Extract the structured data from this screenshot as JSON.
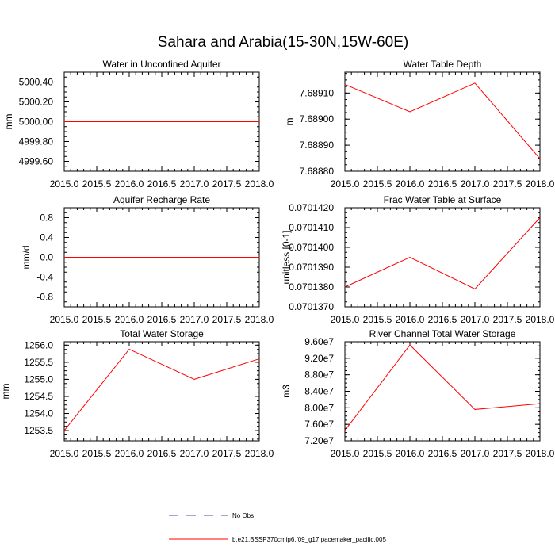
{
  "figure": {
    "title": "Sahara and Arabia(15-30N,15W-60E)"
  },
  "legend": {
    "entries": [
      {
        "label": "No Obs",
        "style": "dashed",
        "color": "#5a4a9a"
      },
      {
        "label": "b.e21.BSSP370cmip6.f09_g17.pacemaker_pacific.005",
        "style": "solid",
        "color": "#ff0000"
      }
    ]
  },
  "series_color": "#ff0000",
  "chart_data": [
    {
      "type": "line",
      "title": "Water in Unconfined Aquifer",
      "ylabel": "mm",
      "xlabel": "",
      "x": [
        2015,
        2016,
        2017,
        2018
      ],
      "series": [
        {
          "values": [
            5000.0,
            5000.0,
            5000.0,
            5000.0
          ]
        }
      ],
      "xlim": [
        2015,
        2018
      ],
      "ylim": [
        4999.5,
        5000.5
      ],
      "xticks": [
        "2015.0",
        "2015.5",
        "2016.0",
        "2016.5",
        "2017.0",
        "2017.5",
        "2018.0"
      ],
      "yticks": [
        "5000.40",
        "5000.20",
        "5000.00",
        "4999.80",
        "4999.60"
      ]
    },
    {
      "type": "line",
      "title": "Water Table Depth",
      "ylabel": "m",
      "xlabel": "",
      "x": [
        2015,
        2016,
        2017,
        2018
      ],
      "series": [
        {
          "values": [
            7.689133,
            7.689028,
            7.689138,
            7.688848
          ]
        }
      ],
      "xlim": [
        2015,
        2018
      ],
      "ylim": [
        7.6888,
        7.68918
      ],
      "xticks": [
        "2015.0",
        "2015.5",
        "2016.0",
        "2016.5",
        "2017.0",
        "2017.5",
        "2018.0"
      ],
      "yticks": [
        "7.68910",
        "7.68900",
        "7.68890",
        "7.68880"
      ]
    },
    {
      "type": "line",
      "title": "Aquifer Recharge Rate",
      "ylabel": "mm/d",
      "xlabel": "",
      "x": [
        2015,
        2016,
        2017,
        2018
      ],
      "series": [
        {
          "values": [
            0.0,
            0.0,
            0.0,
            0.0
          ]
        }
      ],
      "xlim": [
        2015,
        2018
      ],
      "ylim": [
        -1.0,
        1.0
      ],
      "xticks": [
        "2015.0",
        "2015.5",
        "2016.0",
        "2016.5",
        "2017.0",
        "2017.5",
        "2018.0"
      ],
      "yticks": [
        "0.8",
        "0.4",
        "0.0",
        "-0.4",
        "-0.8"
      ]
    },
    {
      "type": "line",
      "title": "Frac Water Table at Surface",
      "ylabel": "unitless [0-1]",
      "xlabel": "",
      "x": [
        2015,
        2016,
        2017,
        2018
      ],
      "series": [
        {
          "values": [
            0.070138,
            0.0701395,
            0.0701379,
            0.0701415
          ]
        }
      ],
      "xlim": [
        2015,
        2018
      ],
      "ylim": [
        0.070137,
        0.070142
      ],
      "xticks": [
        "2015.0",
        "2015.5",
        "2016.0",
        "2016.5",
        "2017.0",
        "2017.5",
        "2018.0"
      ],
      "yticks": [
        "0.0701420",
        "0.0701410",
        "0.0701400",
        "0.0701390",
        "0.0701380",
        "0.0701370"
      ]
    },
    {
      "type": "line",
      "title": "Total Water Storage",
      "ylabel": "mm",
      "xlabel": "",
      "x": [
        2015,
        2016,
        2017,
        2018
      ],
      "series": [
        {
          "values": [
            1253.5,
            1255.88,
            1255.0,
            1255.6
          ]
        }
      ],
      "xlim": [
        2015,
        2018
      ],
      "ylim": [
        1253.2,
        1256.1
      ],
      "xticks": [
        "2015.0",
        "2015.5",
        "2016.0",
        "2016.5",
        "2017.0",
        "2017.5",
        "2018.0"
      ],
      "yticks": [
        "1256.0",
        "1255.5",
        "1255.0",
        "1254.5",
        "1254.0",
        "1253.5"
      ]
    },
    {
      "type": "line",
      "title": "River Channel Total Water Storage",
      "ylabel": "m3",
      "xlabel": "",
      "x": [
        2015,
        2016,
        2017,
        2018
      ],
      "series": [
        {
          "values": [
            74500000,
            95200000,
            79600000,
            81000000
          ]
        }
      ],
      "xlim": [
        2015,
        2018
      ],
      "ylim": [
        72000000,
        96000000
      ],
      "xticks": [
        "2015.0",
        "2015.5",
        "2016.0",
        "2016.5",
        "2017.0",
        "2017.5",
        "2018.0"
      ],
      "yticks": [
        "9.60e7",
        "9.20e7",
        "8.80e7",
        "8.40e7",
        "8.00e7",
        "7.60e7",
        "7.20e7"
      ]
    }
  ]
}
